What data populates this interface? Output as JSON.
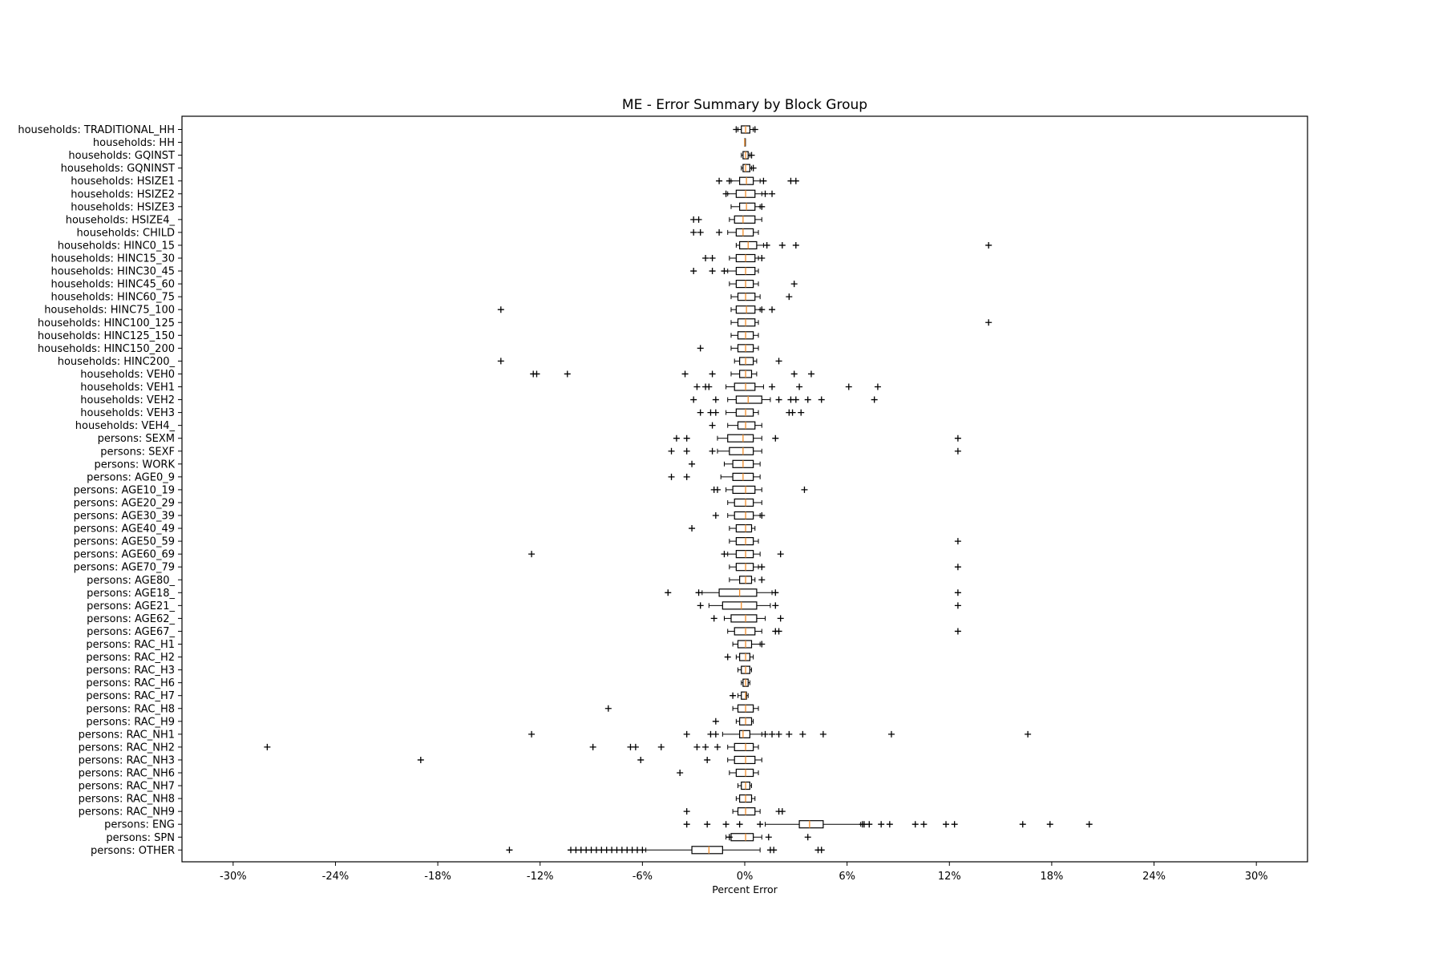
{
  "chart_data": {
    "type": "box",
    "title": "ME - Error Summary by Block Group",
    "xlabel": "Percent Error",
    "ylabel": "",
    "xlim": [
      -33,
      33
    ],
    "x_ticks": [
      -30,
      -24,
      -18,
      -12,
      -6,
      0,
      6,
      12,
      18,
      24,
      30
    ],
    "x_tick_labels": [
      "-30%",
      "-24%",
      "-18%",
      "-12%",
      "-6%",
      "0%",
      "6%",
      "12%",
      "18%",
      "24%",
      "30%"
    ],
    "grid": false,
    "categories": [
      "households: TRADITIONAL_HH",
      "households: HH",
      "households: GQINST",
      "households: GQNINST",
      "households: HSIZE1",
      "households: HSIZE2",
      "households: HSIZE3",
      "households: HSIZE4_",
      "households: CHILD",
      "households: HINC0_15",
      "households: HINC15_30",
      "households: HINC30_45",
      "households: HINC45_60",
      "households: HINC60_75",
      "households: HINC75_100",
      "households: HINC100_125",
      "households: HINC125_150",
      "households: HINC150_200",
      "households: HINC200_",
      "households: VEH0",
      "households: VEH1",
      "households: VEH2",
      "households: VEH3",
      "households: VEH4_",
      "persons: SEXM",
      "persons: SEXF",
      "persons: WORK",
      "persons: AGE0_9",
      "persons: AGE10_19",
      "persons: AGE20_29",
      "persons: AGE30_39",
      "persons: AGE40_49",
      "persons: AGE50_59",
      "persons: AGE60_69",
      "persons: AGE70_79",
      "persons: AGE80_",
      "persons: AGE18_",
      "persons: AGE21_",
      "persons: AGE62_",
      "persons: AGE67_",
      "persons: RAC_H1",
      "persons: RAC_H2",
      "persons: RAC_H3",
      "persons: RAC_H6",
      "persons: RAC_H7",
      "persons: RAC_H8",
      "persons: RAC_H9",
      "persons: RAC_NH1",
      "persons: RAC_NH2",
      "persons: RAC_NH3",
      "persons: RAC_NH6",
      "persons: RAC_NH7",
      "persons: RAC_NH8",
      "persons: RAC_NH9",
      "persons: ENG",
      "persons: SPN",
      "persons: OTHER"
    ],
    "boxes": [
      {
        "q1": -0.2,
        "median": 0.05,
        "q3": 0.3,
        "wl": -0.4,
        "wh": 0.5,
        "outliers": [
          -0.5,
          0.6
        ]
      },
      {
        "q1": 0,
        "median": 0,
        "q3": 0,
        "wl": 0,
        "wh": 0,
        "outliers": []
      },
      {
        "q1": -0.1,
        "median": 0.05,
        "q3": 0.2,
        "wl": -0.2,
        "wh": 0.3,
        "outliers": [
          0.4
        ]
      },
      {
        "q1": -0.1,
        "median": 0.05,
        "q3": 0.3,
        "wl": -0.2,
        "wh": 0.4,
        "outliers": [
          0.5
        ]
      },
      {
        "q1": -0.3,
        "median": 0.1,
        "q3": 0.5,
        "wl": -0.8,
        "wh": 0.9,
        "outliers": [
          -1.5,
          -0.9,
          1.1,
          2.7,
          3.0
        ]
      },
      {
        "q1": -0.5,
        "median": 0.05,
        "q3": 0.6,
        "wl": -1.0,
        "wh": 1.0,
        "outliers": [
          -1.1,
          1.2,
          1.6
        ]
      },
      {
        "q1": -0.3,
        "median": 0.1,
        "q3": 0.6,
        "wl": -0.8,
        "wh": 0.9,
        "outliers": [
          1.0
        ]
      },
      {
        "q1": -0.6,
        "median": -0.1,
        "q3": 0.6,
        "wl": -0.9,
        "wh": 1.0,
        "outliers": [
          -3.0,
          -2.7
        ]
      },
      {
        "q1": -0.5,
        "median": -0.1,
        "q3": 0.5,
        "wl": -1.0,
        "wh": 0.8,
        "outliers": [
          -3.0,
          -2.6,
          -1.5
        ]
      },
      {
        "q1": -0.3,
        "median": 0.2,
        "q3": 0.7,
        "wl": -0.5,
        "wh": 1.1,
        "outliers": [
          1.3,
          2.2,
          3.0,
          14.3
        ]
      },
      {
        "q1": -0.5,
        "median": 0.05,
        "q3": 0.6,
        "wl": -0.9,
        "wh": 0.8,
        "outliers": [
          -2.3,
          -1.9,
          1.0
        ]
      },
      {
        "q1": -0.5,
        "median": 0.05,
        "q3": 0.6,
        "wl": -1.0,
        "wh": 0.8,
        "outliers": [
          -3.0,
          -1.9,
          -1.2
        ]
      },
      {
        "q1": -0.5,
        "median": 0.05,
        "q3": 0.5,
        "wl": -0.9,
        "wh": 0.8,
        "outliers": [
          2.9
        ]
      },
      {
        "q1": -0.4,
        "median": 0.05,
        "q3": 0.6,
        "wl": -0.8,
        "wh": 0.9,
        "outliers": [
          2.6
        ]
      },
      {
        "q1": -0.5,
        "median": 0.1,
        "q3": 0.6,
        "wl": -0.8,
        "wh": 0.9,
        "outliers": [
          -14.3,
          1.0,
          1.6
        ]
      },
      {
        "q1": -0.4,
        "median": 0.05,
        "q3": 0.6,
        "wl": -0.8,
        "wh": 0.8,
        "outliers": [
          14.3
        ]
      },
      {
        "q1": -0.4,
        "median": 0.05,
        "q3": 0.5,
        "wl": -0.8,
        "wh": 0.8,
        "outliers": []
      },
      {
        "q1": -0.4,
        "median": 0.05,
        "q3": 0.5,
        "wl": -0.8,
        "wh": 0.8,
        "outliers": [
          -2.6
        ]
      },
      {
        "q1": -0.3,
        "median": 0.05,
        "q3": 0.5,
        "wl": -0.6,
        "wh": 0.7,
        "outliers": [
          -14.3,
          2.0
        ]
      },
      {
        "q1": -0.3,
        "median": 0.05,
        "q3": 0.4,
        "wl": -0.8,
        "wh": 0.7,
        "outliers": [
          -12.4,
          -12.2,
          -10.4,
          -3.5,
          -1.9,
          2.9,
          3.9
        ]
      },
      {
        "q1": -0.6,
        "median": 0.05,
        "q3": 0.6,
        "wl": -1.1,
        "wh": 1.1,
        "outliers": [
          -2.8,
          -2.3,
          -2.1,
          1.6,
          3.2,
          6.1,
          7.8
        ]
      },
      {
        "q1": -0.5,
        "median": 0.2,
        "q3": 1.0,
        "wl": -1.0,
        "wh": 1.5,
        "outliers": [
          -3.0,
          -1.7,
          2.0,
          2.7,
          3.0,
          3.7,
          4.5,
          7.6
        ]
      },
      {
        "q1": -0.5,
        "median": 0.05,
        "q3": 0.5,
        "wl": -1.1,
        "wh": 0.8,
        "outliers": [
          -2.6,
          -2.0,
          -1.7,
          2.6,
          2.8,
          3.3
        ]
      },
      {
        "q1": -0.4,
        "median": 0.05,
        "q3": 0.6,
        "wl": -1.0,
        "wh": 1.0,
        "outliers": [
          -1.9
        ]
      },
      {
        "q1": -1.0,
        "median": -0.1,
        "q3": 0.5,
        "wl": -1.6,
        "wh": 1.0,
        "outliers": [
          -4.0,
          -3.4,
          1.8,
          12.5
        ]
      },
      {
        "q1": -0.9,
        "median": -0.1,
        "q3": 0.5,
        "wl": -1.6,
        "wh": 1.0,
        "outliers": [
          -4.3,
          -3.4,
          -1.9,
          12.5
        ]
      },
      {
        "q1": -0.7,
        "median": -0.1,
        "q3": 0.5,
        "wl": -1.2,
        "wh": 0.9,
        "outliers": [
          -3.1
        ]
      },
      {
        "q1": -0.7,
        "median": -0.1,
        "q3": 0.5,
        "wl": -1.4,
        "wh": 0.9,
        "outliers": [
          -4.3,
          -3.4
        ]
      },
      {
        "q1": -0.7,
        "median": 0.05,
        "q3": 0.6,
        "wl": -1.1,
        "wh": 1.0,
        "outliers": [
          -1.8,
          -1.6,
          3.5
        ]
      },
      {
        "q1": -0.6,
        "median": 0.05,
        "q3": 0.5,
        "wl": -1.0,
        "wh": 1.0,
        "outliers": []
      },
      {
        "q1": -0.6,
        "median": 0.05,
        "q3": 0.5,
        "wl": -1.0,
        "wh": 0.9,
        "outliers": [
          -1.7,
          1.0
        ]
      },
      {
        "q1": -0.5,
        "median": 0.05,
        "q3": 0.4,
        "wl": -0.9,
        "wh": 0.6,
        "outliers": [
          -3.1
        ]
      },
      {
        "q1": -0.5,
        "median": 0.05,
        "q3": 0.5,
        "wl": -0.9,
        "wh": 0.8,
        "outliers": [
          12.5
        ]
      },
      {
        "q1": -0.5,
        "median": 0.05,
        "q3": 0.5,
        "wl": -1.0,
        "wh": 0.9,
        "outliers": [
          -12.5,
          -1.2,
          2.1
        ]
      },
      {
        "q1": -0.5,
        "median": 0.05,
        "q3": 0.5,
        "wl": -0.9,
        "wh": 0.8,
        "outliers": [
          1.0,
          12.5
        ]
      },
      {
        "q1": -0.3,
        "median": 0.05,
        "q3": 0.4,
        "wl": -0.9,
        "wh": 0.6,
        "outliers": [
          1.0
        ]
      },
      {
        "q1": -1.5,
        "median": -0.3,
        "q3": 0.7,
        "wl": -2.5,
        "wh": 1.6,
        "outliers": [
          -4.5,
          -2.7,
          1.8,
          12.5
        ]
      },
      {
        "q1": -1.3,
        "median": -0.2,
        "q3": 0.7,
        "wl": -2.1,
        "wh": 1.5,
        "outliers": [
          -2.6,
          1.8,
          12.5
        ]
      },
      {
        "q1": -0.8,
        "median": 0.05,
        "q3": 0.7,
        "wl": -1.2,
        "wh": 1.2,
        "outliers": [
          -1.8,
          2.1
        ]
      },
      {
        "q1": -0.6,
        "median": 0.05,
        "q3": 0.6,
        "wl": -1.0,
        "wh": 1.0,
        "outliers": [
          1.8,
          2.0,
          12.5
        ]
      },
      {
        "q1": -0.4,
        "median": 0.05,
        "q3": 0.4,
        "wl": -0.7,
        "wh": 0.9,
        "outliers": [
          1.0
        ]
      },
      {
        "q1": -0.3,
        "median": 0.05,
        "q3": 0.3,
        "wl": -0.5,
        "wh": 0.5,
        "outliers": [
          -1.0
        ]
      },
      {
        "q1": -0.2,
        "median": 0.05,
        "q3": 0.3,
        "wl": -0.4,
        "wh": 0.4,
        "outliers": []
      },
      {
        "q1": -0.1,
        "median": 0.05,
        "q3": 0.2,
        "wl": -0.2,
        "wh": 0.3,
        "outliers": []
      },
      {
        "q1": -0.2,
        "median": 0.05,
        "q3": 0.1,
        "wl": -0.4,
        "wh": 0.2,
        "outliers": [
          -0.7
        ]
      },
      {
        "q1": -0.4,
        "median": 0.05,
        "q3": 0.5,
        "wl": -0.7,
        "wh": 0.8,
        "outliers": [
          -8.0
        ]
      },
      {
        "q1": -0.3,
        "median": 0.05,
        "q3": 0.4,
        "wl": -0.5,
        "wh": 0.5,
        "outliers": [
          -1.7
        ]
      },
      {
        "q1": -0.3,
        "median": -0.1,
        "q3": 0.3,
        "wl": -1.3,
        "wh": 1.0,
        "outliers": [
          -12.5,
          -3.4,
          -2.0,
          -1.7,
          1.2,
          1.6,
          2.0,
          2.6,
          3.4,
          4.6,
          8.6,
          16.6
        ]
      },
      {
        "q1": -0.6,
        "median": 0.05,
        "q3": 0.5,
        "wl": -1.0,
        "wh": 0.8,
        "outliers": [
          -28.0,
          -8.9,
          -6.7,
          -6.4,
          -4.9,
          -2.8,
          -2.3,
          -1.6
        ]
      },
      {
        "q1": -0.6,
        "median": 0.05,
        "q3": 0.6,
        "wl": -1.0,
        "wh": 1.0,
        "outliers": [
          -19.0,
          -6.1,
          -2.2
        ]
      },
      {
        "q1": -0.5,
        "median": 0.05,
        "q3": 0.5,
        "wl": -0.9,
        "wh": 0.8,
        "outliers": [
          -3.8
        ]
      },
      {
        "q1": -0.2,
        "median": 0.05,
        "q3": 0.3,
        "wl": -0.4,
        "wh": 0.4,
        "outliers": []
      },
      {
        "q1": -0.3,
        "median": 0.05,
        "q3": 0.4,
        "wl": -0.5,
        "wh": 0.6,
        "outliers": []
      },
      {
        "q1": -0.4,
        "median": 0.05,
        "q3": 0.6,
        "wl": -0.7,
        "wh": 0.9,
        "outliers": [
          -3.4,
          2.0,
          2.2
        ]
      },
      {
        "q1": 3.2,
        "median": 3.8,
        "q3": 4.6,
        "wl": 1.2,
        "wh": 6.8,
        "outliers": [
          -3.4,
          -2.2,
          -1.1,
          -0.3,
          0.9,
          6.9,
          7.0,
          7.3,
          8.0,
          8.5,
          10.0,
          10.5,
          11.8,
          12.3,
          16.3,
          17.9,
          20.2
        ]
      },
      {
        "q1": -0.8,
        "median": 0.05,
        "q3": 0.5,
        "wl": -1.1,
        "wh": 1.0,
        "outliers": [
          -0.9,
          1.4,
          3.7
        ]
      },
      {
        "q1": -3.1,
        "median": -2.1,
        "q3": -1.3,
        "wl": -5.8,
        "wh": 0.9,
        "outliers": [
          -13.8,
          -10.2,
          -9.9,
          -9.6,
          -9.3,
          -9.0,
          -8.7,
          -8.4,
          -8.1,
          -7.8,
          -7.5,
          -7.2,
          -6.9,
          -6.6,
          -6.3,
          -6.0,
          1.5,
          1.7,
          4.3,
          4.5
        ]
      }
    ]
  }
}
